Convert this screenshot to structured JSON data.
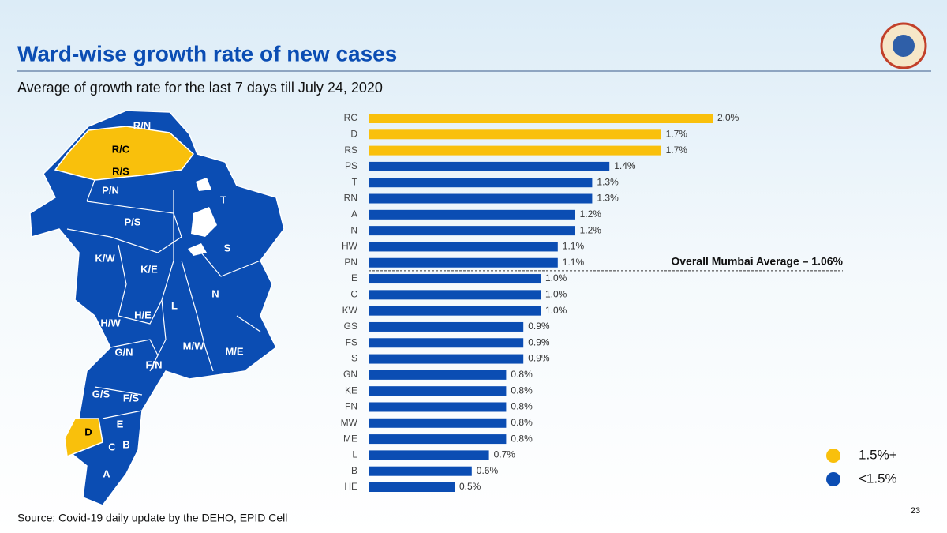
{
  "header": {
    "title": "Ward-wise growth rate of new cases",
    "subtitle": "Average of growth rate for the last 7 days till July 24, 2020",
    "source": "Source: Covid-19 daily update by the DEHO, EPID Cell",
    "page": "23"
  },
  "map": {
    "wards": [
      "R/N",
      "R/C",
      "R/S",
      "P/N",
      "P/S",
      "T",
      "S",
      "K/W",
      "K/E",
      "L",
      "N",
      "H/W",
      "H/E",
      "G/N",
      "M/W",
      "M/E",
      "F/N",
      "G/S",
      "F/S",
      "D",
      "E",
      "C",
      "B",
      "A"
    ]
  },
  "chart_data": {
    "type": "bar",
    "orientation": "horizontal",
    "categories": [
      "RC",
      "D",
      "RS",
      "PS",
      "T",
      "RN",
      "A",
      "N",
      "HW",
      "PN",
      "E",
      "C",
      "KW",
      "GS",
      "FS",
      "S",
      "GN",
      "KE",
      "FN",
      "MW",
      "ME",
      "L",
      "B",
      "HE"
    ],
    "values": [
      2.0,
      1.7,
      1.7,
      1.4,
      1.3,
      1.3,
      1.2,
      1.2,
      1.1,
      1.1,
      1.0,
      1.0,
      1.0,
      0.9,
      0.9,
      0.9,
      0.8,
      0.8,
      0.8,
      0.8,
      0.8,
      0.7,
      0.6,
      0.5
    ],
    "value_labels": [
      "2.0%",
      "1.7%",
      "1.7%",
      "1.4%",
      "1.3%",
      "1.3%",
      "1.2%",
      "1.2%",
      "1.1%",
      "1.1%",
      "1.0%",
      "1.0%",
      "1.0%",
      "0.9%",
      "0.9%",
      "0.9%",
      "0.8%",
      "0.8%",
      "0.8%",
      "0.8%",
      "0.8%",
      "0.7%",
      "0.6%",
      "0.5%"
    ],
    "colors": [
      "#f9c00c",
      "#f9c00c",
      "#f9c00c",
      "#0b4db3",
      "#0b4db3",
      "#0b4db3",
      "#0b4db3",
      "#0b4db3",
      "#0b4db3",
      "#0b4db3",
      "#0b4db3",
      "#0b4db3",
      "#0b4db3",
      "#0b4db3",
      "#0b4db3",
      "#0b4db3",
      "#0b4db3",
      "#0b4db3",
      "#0b4db3",
      "#0b4db3",
      "#0b4db3",
      "#0b4db3",
      "#0b4db3",
      "#0b4db3"
    ],
    "annotation": {
      "text": "Overall Mumbai Average – 1.06%",
      "value": 1.06
    },
    "legend": [
      {
        "label": "1.5%+",
        "color": "#f9c00c"
      },
      {
        "label": "<1.5%",
        "color": "#0b4db3"
      }
    ]
  }
}
